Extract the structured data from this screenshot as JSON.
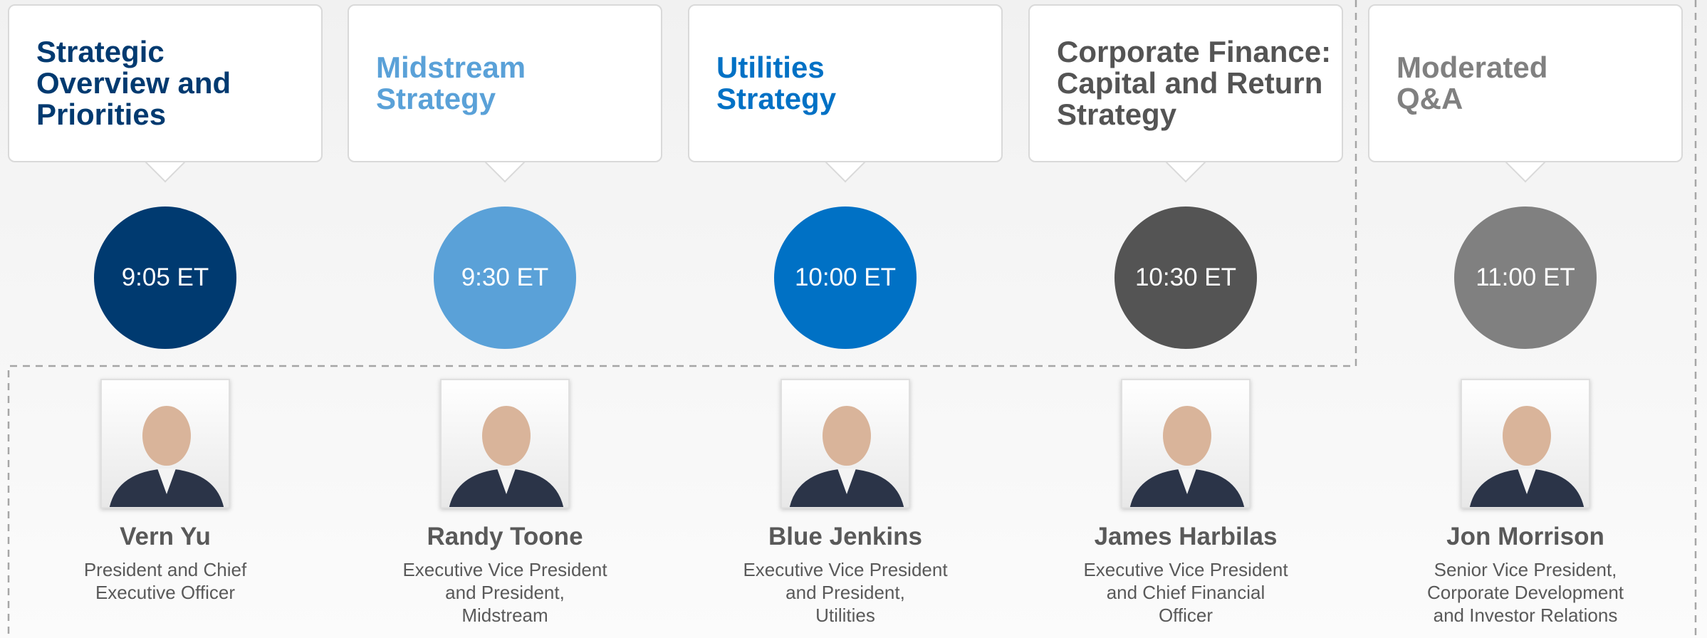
{
  "sessions": [
    {
      "title_lines": [
        "Strategic",
        "Overview and",
        "Priorities"
      ],
      "color": "#003a70",
      "time": "9:05 ET",
      "speaker": "Vern Yu",
      "role_lines": [
        "President and Chief",
        "Executive Officer"
      ]
    },
    {
      "title_lines": [
        "Midstream",
        "Strategy"
      ],
      "color": "#5aa1d8",
      "time": "9:30 ET",
      "speaker": "Randy Toone",
      "role_lines": [
        "Executive Vice President",
        "and President,",
        "Midstream"
      ]
    },
    {
      "title_lines": [
        "Utilities",
        "Strategy"
      ],
      "color": "#0071c5",
      "time": "10:00 ET",
      "speaker": "Blue Jenkins",
      "role_lines": [
        "Executive Vice President",
        "and President,",
        "Utilities"
      ]
    },
    {
      "title_lines": [
        "Corporate Finance:",
        "Capital and Return",
        "Strategy"
      ],
      "color": "#545454",
      "time": "10:30 ET",
      "speaker": "James Harbilas",
      "role_lines": [
        "Executive Vice President",
        "and Chief Financial",
        "Officer"
      ]
    },
    {
      "title_lines": [
        "Moderated",
        "Q&A"
      ],
      "color": "#808080",
      "time": "11:00 ET",
      "speaker": "Jon Morrison",
      "role_lines": [
        "Senior Vice President,",
        "Corporate Development",
        "and Investor Relations"
      ]
    }
  ]
}
